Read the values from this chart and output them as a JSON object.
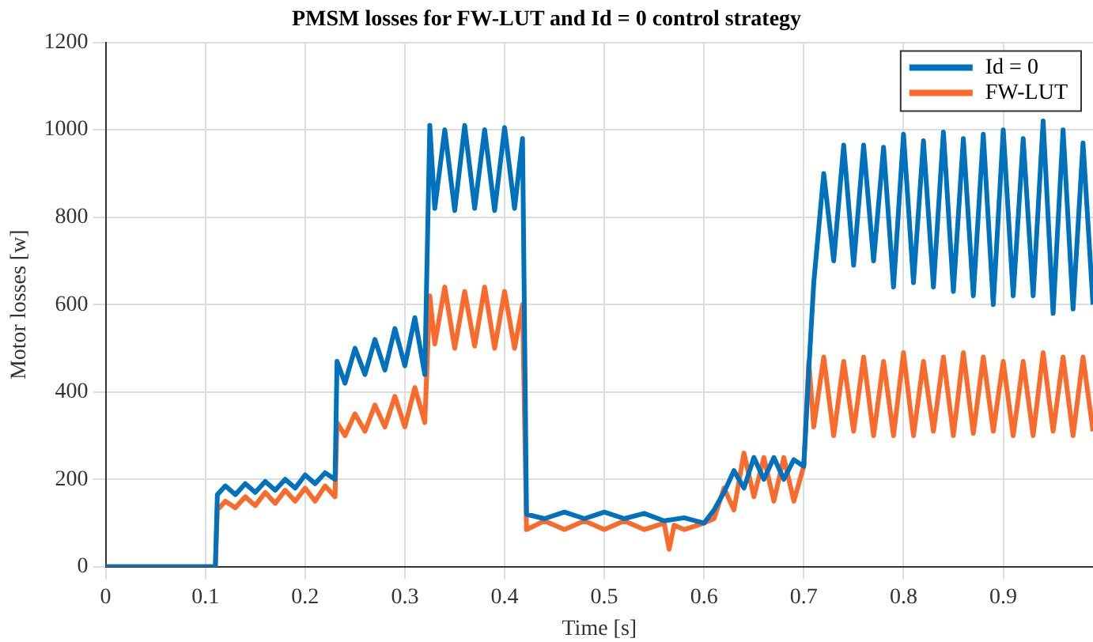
{
  "chart_data": {
    "type": "line",
    "title": "PMSM losses for FW-LUT and Id = 0 control strategy",
    "xlabel": "Time [s]",
    "ylabel": "Motor losses [w]",
    "xlim": [
      0,
      0.99
    ],
    "xticks": [
      0,
      0.1,
      0.2,
      0.3,
      0.4,
      0.5,
      0.6,
      0.7,
      0.8,
      0.9
    ],
    "ylim": [
      0,
      1200
    ],
    "yticks": [
      0,
      200,
      400,
      600,
      800,
      1000,
      1200
    ],
    "grid": true,
    "legend": "top right",
    "marker": "none",
    "line_style": "solid",
    "series": [
      {
        "name": "Id = 0",
        "color": "#0072bd",
        "x": [
          0,
          0.11,
          0.112,
          0.12,
          0.13,
          0.14,
          0.15,
          0.16,
          0.17,
          0.18,
          0.19,
          0.2,
          0.21,
          0.22,
          0.23,
          0.232,
          0.24,
          0.25,
          0.26,
          0.27,
          0.28,
          0.29,
          0.3,
          0.31,
          0.32,
          0.325,
          0.33,
          0.34,
          0.35,
          0.36,
          0.37,
          0.38,
          0.39,
          0.4,
          0.41,
          0.418,
          0.422,
          0.44,
          0.46,
          0.48,
          0.5,
          0.52,
          0.54,
          0.56,
          0.58,
          0.6,
          0.61,
          0.62,
          0.63,
          0.64,
          0.65,
          0.66,
          0.67,
          0.68,
          0.69,
          0.7,
          0.705,
          0.71,
          0.72,
          0.73,
          0.74,
          0.75,
          0.76,
          0.77,
          0.78,
          0.79,
          0.8,
          0.81,
          0.82,
          0.83,
          0.84,
          0.85,
          0.86,
          0.87,
          0.88,
          0.89,
          0.9,
          0.91,
          0.92,
          0.93,
          0.94,
          0.95,
          0.96,
          0.97,
          0.98,
          0.99
        ],
        "values": [
          0,
          0,
          165,
          185,
          165,
          190,
          170,
          195,
          175,
          200,
          180,
          210,
          190,
          215,
          200,
          470,
          420,
          500,
          440,
          520,
          450,
          545,
          460,
          570,
          440,
          1010,
          820,
          1000,
          815,
          1010,
          820,
          1000,
          815,
          1005,
          820,
          980,
          120,
          110,
          125,
          110,
          125,
          110,
          122,
          105,
          112,
          100,
          130,
          170,
          220,
          180,
          250,
          200,
          250,
          200,
          245,
          230,
          450,
          650,
          900,
          700,
          965,
          690,
          965,
          700,
          960,
          640,
          990,
          650,
          975,
          640,
          995,
          630,
          980,
          620,
          990,
          600,
          1000,
          620,
          980,
          620,
          1020,
          580,
          1000,
          590,
          970,
          600
        ]
      },
      {
        "name": "FW-LUT",
        "color": "#fa6a2a",
        "x": [
          0,
          0.11,
          0.112,
          0.12,
          0.13,
          0.14,
          0.15,
          0.16,
          0.17,
          0.18,
          0.19,
          0.2,
          0.21,
          0.22,
          0.23,
          0.232,
          0.24,
          0.25,
          0.26,
          0.27,
          0.28,
          0.29,
          0.3,
          0.31,
          0.32,
          0.325,
          0.33,
          0.34,
          0.35,
          0.36,
          0.37,
          0.38,
          0.39,
          0.4,
          0.41,
          0.418,
          0.422,
          0.44,
          0.46,
          0.48,
          0.5,
          0.52,
          0.54,
          0.56,
          0.565,
          0.57,
          0.58,
          0.6,
          0.61,
          0.62,
          0.63,
          0.64,
          0.65,
          0.66,
          0.67,
          0.68,
          0.69,
          0.7,
          0.705,
          0.71,
          0.72,
          0.73,
          0.74,
          0.75,
          0.76,
          0.77,
          0.78,
          0.79,
          0.8,
          0.81,
          0.82,
          0.83,
          0.84,
          0.85,
          0.86,
          0.87,
          0.88,
          0.89,
          0.9,
          0.91,
          0.92,
          0.93,
          0.94,
          0.95,
          0.96,
          0.97,
          0.98,
          0.99
        ],
        "values": [
          0,
          0,
          130,
          150,
          135,
          160,
          140,
          170,
          145,
          175,
          150,
          180,
          150,
          185,
          160,
          330,
          300,
          350,
          310,
          370,
          320,
          390,
          320,
          410,
          330,
          620,
          510,
          640,
          500,
          630,
          505,
          640,
          500,
          630,
          500,
          600,
          85,
          105,
          85,
          105,
          85,
          105,
          85,
          100,
          40,
          95,
          85,
          100,
          110,
          180,
          130,
          260,
          160,
          250,
          150,
          250,
          150,
          230,
          470,
          320,
          480,
          300,
          470,
          310,
          480,
          300,
          470,
          300,
          490,
          300,
          470,
          310,
          480,
          300,
          490,
          305,
          480,
          310,
          470,
          300,
          470,
          300,
          490,
          310,
          480,
          300,
          480,
          310
        ]
      }
    ]
  }
}
